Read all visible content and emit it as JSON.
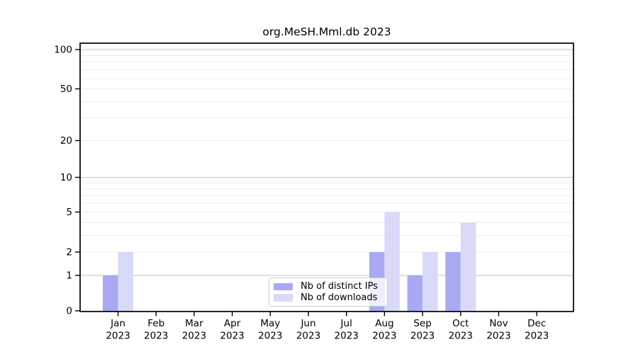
{
  "chart_data": {
    "type": "bar",
    "title": "org.MeSH.Mml.db 2023",
    "months": [
      "Jan",
      "Feb",
      "Mar",
      "Apr",
      "May",
      "Jun",
      "Jul",
      "Aug",
      "Sep",
      "Oct",
      "Nov",
      "Dec"
    ],
    "year": "2023",
    "series": [
      {
        "name": "Nb of distinct IPs",
        "color": "#a9a9f3",
        "values": [
          1,
          0,
          0,
          0,
          0,
          0,
          0,
          2,
          1,
          2,
          0,
          0
        ]
      },
      {
        "name": "Nb of downloads",
        "color": "#d9daf8",
        "values": [
          2,
          0,
          0,
          0,
          0,
          0,
          0,
          5,
          2,
          4,
          0,
          0
        ]
      }
    ],
    "y_ticks": [
      0,
      1,
      2,
      5,
      10,
      20,
      50,
      100
    ],
    "y_major_grid_values": [
      1,
      10,
      100
    ],
    "y_minor_grid_values": [
      2,
      3,
      4,
      6,
      7,
      8,
      9,
      20,
      30,
      40,
      60,
      70,
      80,
      90
    ],
    "y_scale": "log(value+1)",
    "ylim": [
      0,
      100
    ],
    "grid": true,
    "legend_position": "lower center",
    "colors": {
      "major_grid": "#c2c2c2",
      "minor_grid": "#ececec",
      "axis": "#000000",
      "background": "#ffffff",
      "text": "#000000"
    }
  }
}
